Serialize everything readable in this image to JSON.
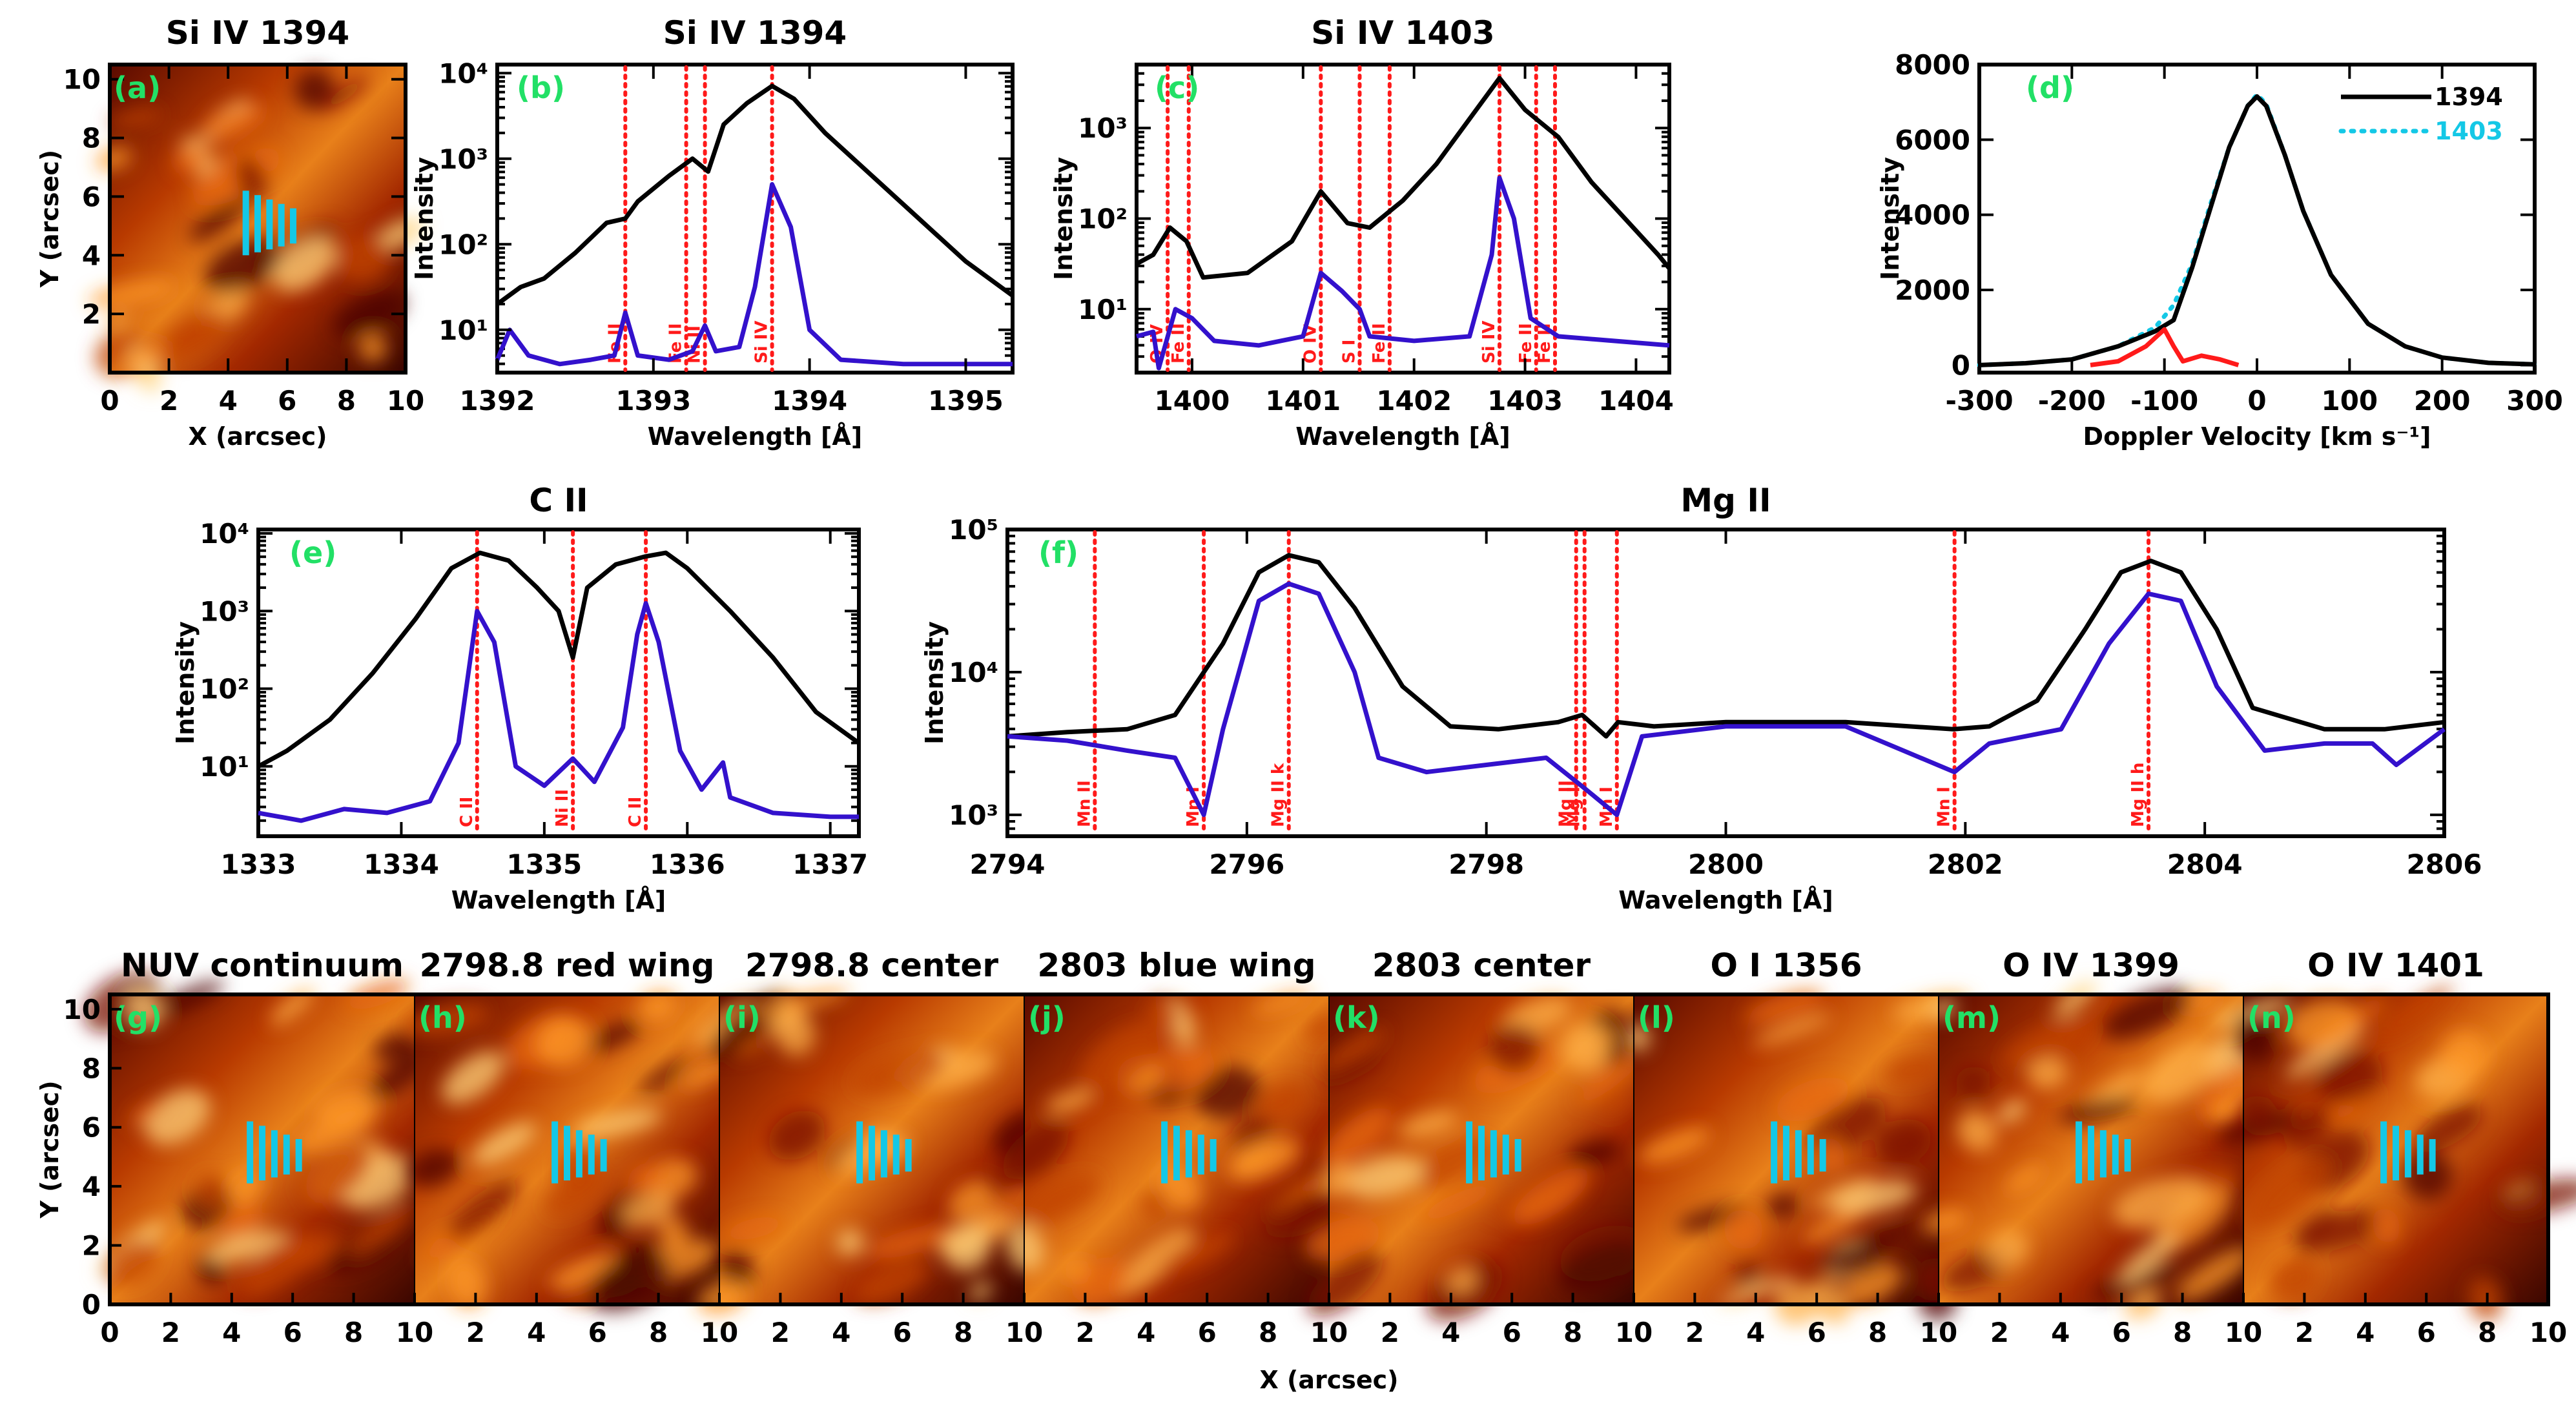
{
  "chart_data": [
    {
      "panel": "a",
      "type": "heatmap",
      "title": "Si IV 1394",
      "xlabel": "X (arcsec)",
      "ylabel": "Y (arcsec)",
      "xlim": [
        0,
        10
      ],
      "ylim": [
        0,
        10.5
      ],
      "xticks": [
        "0",
        "2",
        "4",
        "6",
        "8",
        "10"
      ],
      "yticks": [
        "2",
        "4",
        "6",
        "8",
        "10"
      ],
      "slit_x": [
        4.6,
        5.0,
        5.4,
        5.8,
        6.2
      ],
      "slit_y": [
        4.0,
        6.0
      ]
    },
    {
      "panel": "b",
      "type": "line",
      "title": "Si IV 1394",
      "xlabel": "Wavelength [Å]",
      "ylabel": "Intensity",
      "xlim": [
        1392.0,
        1395.3
      ],
      "ylim_log10": [
        0.5,
        4.1
      ],
      "xticks": [
        "1392",
        "1393",
        "1394",
        "1395"
      ],
      "yticks": [
        "10¹",
        "10²",
        "10³",
        "10⁴"
      ],
      "lines": [
        {
          "x": 1392.82,
          "label": "Fe II"
        },
        {
          "x": 1393.21,
          "label": "Fe II"
        },
        {
          "x": 1393.33,
          "label": "Ni II"
        },
        {
          "x": 1393.76,
          "label": "Si IV"
        }
      ],
      "series": [
        {
          "name": "black",
          "x": [
            1392.0,
            1392.15,
            1392.3,
            1392.5,
            1392.7,
            1392.82,
            1392.9,
            1393.1,
            1393.25,
            1393.35,
            1393.45,
            1393.6,
            1393.76,
            1393.9,
            1394.1,
            1394.4,
            1394.7,
            1395.0,
            1395.3
          ],
          "log10": [
            1.3,
            1.5,
            1.6,
            1.9,
            2.25,
            2.3,
            2.5,
            2.8,
            3.0,
            2.85,
            3.4,
            3.65,
            3.85,
            3.7,
            3.3,
            2.8,
            2.3,
            1.8,
            1.4
          ]
        },
        {
          "name": "blue",
          "x": [
            1392.0,
            1392.08,
            1392.2,
            1392.4,
            1392.6,
            1392.75,
            1392.82,
            1392.9,
            1393.1,
            1393.25,
            1393.33,
            1393.4,
            1393.55,
            1393.65,
            1393.76,
            1393.88,
            1394.0,
            1394.2,
            1394.6,
            1395.0,
            1395.3
          ],
          "log10": [
            0.65,
            1.0,
            0.7,
            0.6,
            0.65,
            0.7,
            1.2,
            0.7,
            0.65,
            0.75,
            1.05,
            0.75,
            0.8,
            1.5,
            2.7,
            2.2,
            1.0,
            0.65,
            0.6,
            0.6,
            0.6
          ]
        }
      ]
    },
    {
      "panel": "c",
      "type": "line",
      "title": "Si IV 1403",
      "xlabel": "Wavelength [Å]",
      "ylabel": "Intensity",
      "xlim": [
        1399.5,
        1404.3
      ],
      "ylim_log10": [
        0.3,
        3.7
      ],
      "xticks": [
        "1400",
        "1401",
        "1402",
        "1403",
        "1404"
      ],
      "yticks": [
        "10¹",
        "10²",
        "10³"
      ],
      "lines": [
        {
          "x": 1399.78,
          "label": "O IV"
        },
        {
          "x": 1399.97,
          "label": "Fe II"
        },
        {
          "x": 1401.16,
          "label": "O IV"
        },
        {
          "x": 1401.51,
          "label": "S I"
        },
        {
          "x": 1401.78,
          "label": "Fe II"
        },
        {
          "x": 1402.77,
          "label": "Si IV"
        },
        {
          "x": 1403.1,
          "label": "Fe II"
        },
        {
          "x": 1403.27,
          "label": "Fe II"
        }
      ],
      "series": [
        {
          "name": "black",
          "x": [
            1399.5,
            1399.65,
            1399.8,
            1399.95,
            1400.1,
            1400.5,
            1400.9,
            1401.16,
            1401.4,
            1401.6,
            1401.9,
            1402.2,
            1402.5,
            1402.77,
            1403.0,
            1403.3,
            1403.6,
            1403.9,
            1404.2,
            1404.3
          ],
          "log10": [
            1.5,
            1.6,
            1.9,
            1.75,
            1.35,
            1.4,
            1.75,
            2.3,
            1.95,
            1.9,
            2.2,
            2.6,
            3.1,
            3.55,
            3.2,
            2.9,
            2.4,
            2.0,
            1.6,
            1.45
          ]
        },
        {
          "name": "blue",
          "x": [
            1399.5,
            1399.65,
            1399.7,
            1399.85,
            1400.0,
            1400.2,
            1400.6,
            1401.0,
            1401.16,
            1401.35,
            1401.51,
            1401.6,
            1402.0,
            1402.5,
            1402.7,
            1402.77,
            1402.9,
            1403.05,
            1403.3,
            1403.8,
            1404.3
          ],
          "log10": [
            0.7,
            0.75,
            0.35,
            1.0,
            0.9,
            0.65,
            0.6,
            0.7,
            1.4,
            1.2,
            1.0,
            0.7,
            0.65,
            0.7,
            1.6,
            2.45,
            2.0,
            0.9,
            0.7,
            0.65,
            0.6
          ]
        }
      ]
    },
    {
      "panel": "d",
      "type": "line",
      "xlabel": "Doppler Velocity [km s⁻¹]",
      "ylabel": "Intensity",
      "xlim": [
        -300,
        300
      ],
      "ylim": [
        -200,
        8000
      ],
      "xticks": [
        "-300",
        "-200",
        "-100",
        "0",
        "100",
        "200",
        "300"
      ],
      "yticks": [
        "0",
        "2000",
        "4000",
        "6000",
        "8000"
      ],
      "legend": [
        {
          "label": "1394",
          "color": "#000000",
          "style": "solid"
        },
        {
          "label": "1403",
          "color": "#14c8e6",
          "style": "dotted"
        }
      ],
      "series": [
        {
          "name": "1394",
          "x": [
            -300,
            -250,
            -200,
            -150,
            -110,
            -90,
            -70,
            -50,
            -30,
            -10,
            0,
            10,
            30,
            50,
            80,
            120,
            160,
            200,
            250,
            300
          ],
          "y": [
            0,
            50,
            150,
            500,
            900,
            1200,
            2600,
            4200,
            5800,
            6900,
            7150,
            6900,
            5600,
            4100,
            2400,
            1100,
            500,
            200,
            60,
            20
          ]
        },
        {
          "name": "1403",
          "x": [
            -300,
            -250,
            -200,
            -150,
            -110,
            -90,
            -70,
            -50,
            -30,
            -10,
            0,
            10,
            30,
            50,
            80,
            120,
            160,
            200,
            250,
            300
          ],
          "y": [
            0,
            50,
            150,
            500,
            1000,
            1600,
            2700,
            4300,
            5800,
            6900,
            7200,
            6950,
            5600,
            4100,
            2400,
            1100,
            500,
            200,
            60,
            20
          ]
        },
        {
          "name": "difference",
          "x": [
            -180,
            -150,
            -120,
            -100,
            -90,
            -80,
            -60,
            -40,
            -20
          ],
          "y": [
            0,
            100,
            500,
            950,
            500,
            100,
            250,
            150,
            0
          ]
        }
      ]
    },
    {
      "panel": "e",
      "type": "line",
      "title": "C II",
      "xlabel": "Wavelength [Å]",
      "ylabel": "Intensity",
      "xlim": [
        1333.0,
        1337.2
      ],
      "ylim_log10": [
        0.1,
        4.05
      ],
      "xticks": [
        "1333",
        "1334",
        "1335",
        "1336",
        "1337"
      ],
      "yticks": [
        "10¹",
        "10²",
        "10³",
        "10⁴"
      ],
      "lines": [
        {
          "x": 1334.53,
          "label": "C II"
        },
        {
          "x": 1335.2,
          "label": "Ni II"
        },
        {
          "x": 1335.71,
          "label": "C II"
        }
      ],
      "series": [
        {
          "name": "black",
          "x": [
            1333.0,
            1333.2,
            1333.5,
            1333.8,
            1334.1,
            1334.35,
            1334.55,
            1334.75,
            1334.95,
            1335.1,
            1335.2,
            1335.3,
            1335.5,
            1335.7,
            1335.85,
            1336.0,
            1336.3,
            1336.6,
            1336.9,
            1337.2
          ],
          "log10": [
            1.0,
            1.2,
            1.6,
            2.2,
            2.9,
            3.55,
            3.75,
            3.65,
            3.3,
            3.0,
            2.4,
            3.3,
            3.6,
            3.7,
            3.75,
            3.55,
            3.0,
            2.4,
            1.7,
            1.3
          ]
        },
        {
          "name": "blue",
          "x": [
            1333.0,
            1333.3,
            1333.6,
            1333.9,
            1334.2,
            1334.4,
            1334.53,
            1334.65,
            1334.8,
            1335.0,
            1335.2,
            1335.35,
            1335.55,
            1335.65,
            1335.71,
            1335.8,
            1335.95,
            1336.1,
            1336.25,
            1336.3,
            1336.6,
            1337.0,
            1337.2
          ],
          "log10": [
            0.4,
            0.3,
            0.45,
            0.4,
            0.55,
            1.3,
            3.0,
            2.6,
            1.0,
            0.75,
            1.1,
            0.8,
            1.5,
            2.7,
            3.1,
            2.6,
            1.2,
            0.7,
            1.05,
            0.6,
            0.4,
            0.35,
            0.35
          ]
        }
      ]
    },
    {
      "panel": "f",
      "type": "line",
      "title": "Mg II",
      "xlabel": "Wavelength [Å]",
      "ylabel": "Intensity",
      "xlim": [
        2794.0,
        2806.0
      ],
      "ylim_log10": [
        2.85,
        5.0
      ],
      "xticks": [
        "2794",
        "2796",
        "2798",
        "2800",
        "2802",
        "2804",
        "2806"
      ],
      "yticks": [
        "10³",
        "10⁴",
        "10⁵"
      ],
      "lines": [
        {
          "x": 2794.73,
          "label": "Mn II"
        },
        {
          "x": 2795.64,
          "label": "Mn I"
        },
        {
          "x": 2796.35,
          "label": "Mg II k"
        },
        {
          "x": 2798.75,
          "label": "Mg II"
        },
        {
          "x": 2798.82,
          "label": "Mg II"
        },
        {
          "x": 2799.09,
          "label": "Mn I"
        },
        {
          "x": 2801.91,
          "label": "Mn I"
        },
        {
          "x": 2803.53,
          "label": "Mg II h"
        }
      ],
      "series": [
        {
          "name": "black",
          "x": [
            2794.0,
            2794.5,
            2795.0,
            2795.4,
            2795.8,
            2796.1,
            2796.35,
            2796.6,
            2796.9,
            2797.3,
            2797.7,
            2798.1,
            2798.6,
            2798.8,
            2799.0,
            2799.1,
            2799.4,
            2800.0,
            2801.0,
            2801.9,
            2802.2,
            2802.6,
            2803.0,
            2803.3,
            2803.55,
            2803.8,
            2804.1,
            2804.4,
            2805.0,
            2805.5,
            2806.0
          ],
          "log10": [
            3.55,
            3.58,
            3.6,
            3.7,
            4.2,
            4.7,
            4.82,
            4.77,
            4.45,
            3.9,
            3.62,
            3.6,
            3.65,
            3.7,
            3.55,
            3.65,
            3.62,
            3.65,
            3.65,
            3.6,
            3.62,
            3.8,
            4.3,
            4.7,
            4.78,
            4.7,
            4.3,
            3.75,
            3.6,
            3.6,
            3.65
          ]
        },
        {
          "name": "blue",
          "x": [
            2794.0,
            2794.5,
            2795.0,
            2795.4,
            2795.64,
            2795.8,
            2796.1,
            2796.35,
            2796.6,
            2796.9,
            2797.1,
            2797.5,
            2798.0,
            2798.5,
            2798.8,
            2799.09,
            2799.3,
            2800.0,
            2801.0,
            2801.91,
            2802.2,
            2802.8,
            2803.2,
            2803.53,
            2803.8,
            2804.1,
            2804.5,
            2805.0,
            2805.4,
            2805.6,
            2806.0
          ],
          "log10": [
            3.55,
            3.52,
            3.45,
            3.4,
            3.0,
            3.6,
            4.5,
            4.62,
            4.55,
            4.0,
            3.4,
            3.3,
            3.35,
            3.4,
            3.2,
            3.0,
            3.55,
            3.62,
            3.62,
            3.3,
            3.5,
            3.6,
            4.2,
            4.55,
            4.5,
            3.9,
            3.45,
            3.5,
            3.5,
            3.35,
            3.6
          ]
        }
      ]
    },
    {
      "type": "heatmap",
      "xlabel": "X (arcsec)",
      "ylabel": "Y (arcsec)",
      "xlim": [
        0,
        10
      ],
      "ylim": [
        0,
        10.5
      ],
      "xticks": [
        "0",
        "2",
        "4",
        "6",
        "8",
        "10"
      ],
      "yticks": [
        "0",
        "2",
        "4",
        "6",
        "8",
        "10"
      ],
      "panels": [
        {
          "letter": "(g)",
          "title": "NUV continuum"
        },
        {
          "letter": "(h)",
          "title": "2798.8 red wing"
        },
        {
          "letter": "(i)",
          "title": "2798.8 center"
        },
        {
          "letter": "(j)",
          "title": "2803 blue wing"
        },
        {
          "letter": "(k)",
          "title": "2803 center"
        },
        {
          "letter": "(l)",
          "title": "O I 1356"
        },
        {
          "letter": "(m)",
          "title": "O IV 1399"
        },
        {
          "letter": "(n)",
          "title": "O IV 1401"
        }
      ]
    }
  ],
  "colors": {
    "black_spectrum": "#000000",
    "blue_spectrum": "#3311cc",
    "red_line": "#ff1a1a",
    "cyan": "#14c8e6",
    "panel_letter": "#22e066"
  }
}
